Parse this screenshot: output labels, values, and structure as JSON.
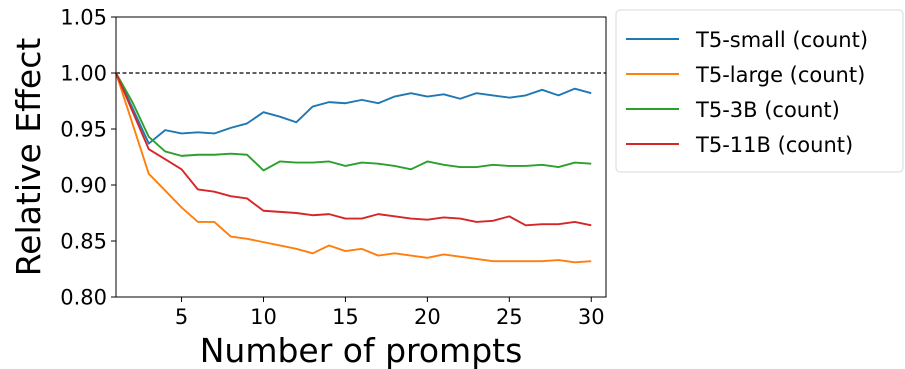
{
  "chart_data": {
    "type": "line",
    "title": "",
    "xlabel": "Number of prompts",
    "ylabel": "Relative Effect",
    "xlim": [
      1,
      30.9
    ],
    "ylim": [
      0.8,
      1.05
    ],
    "xticks": [
      5,
      10,
      15,
      20,
      25,
      30
    ],
    "yticks": [
      0.8,
      0.85,
      0.9,
      0.95,
      1.0,
      1.05
    ],
    "ytick_labels": [
      "0.80",
      "0.85",
      "0.90",
      "0.95",
      "1.00",
      "1.05"
    ],
    "reference_line": {
      "y": 1.0,
      "style": "dashed",
      "color": "#000000"
    },
    "grid": false,
    "legend_position": "outside-top-right",
    "x": [
      1,
      2,
      3,
      4,
      5,
      6,
      7,
      8,
      9,
      10,
      11,
      12,
      13,
      14,
      15,
      16,
      17,
      18,
      19,
      20,
      21,
      22,
      23,
      24,
      25,
      26,
      27,
      28,
      29,
      30
    ],
    "series": [
      {
        "name": "T5-small (count)",
        "color": "#1f77b4",
        "values": [
          1.0,
          0.969,
          0.937,
          0.949,
          0.946,
          0.947,
          0.946,
          0.951,
          0.955,
          0.965,
          0.961,
          0.956,
          0.97,
          0.974,
          0.973,
          0.976,
          0.973,
          0.979,
          0.982,
          0.979,
          0.981,
          0.977,
          0.982,
          0.98,
          0.978,
          0.98,
          0.985,
          0.98,
          0.986,
          0.982
        ]
      },
      {
        "name": "T5-large (count)",
        "color": "#ff7f0e",
        "values": [
          1.0,
          0.955,
          0.91,
          0.895,
          0.88,
          0.867,
          0.867,
          0.854,
          0.852,
          0.849,
          0.846,
          0.843,
          0.839,
          0.846,
          0.841,
          0.843,
          0.837,
          0.839,
          0.837,
          0.835,
          0.838,
          0.836,
          0.834,
          0.832,
          0.832,
          0.832,
          0.832,
          0.833,
          0.831,
          0.832
        ]
      },
      {
        "name": "T5-3B (count)",
        "color": "#2ca02c",
        "values": [
          1.0,
          0.974,
          0.943,
          0.93,
          0.926,
          0.927,
          0.927,
          0.928,
          0.927,
          0.913,
          0.921,
          0.92,
          0.92,
          0.921,
          0.917,
          0.92,
          0.919,
          0.917,
          0.914,
          0.921,
          0.918,
          0.916,
          0.916,
          0.918,
          0.917,
          0.917,
          0.918,
          0.916,
          0.92,
          0.919
        ]
      },
      {
        "name": "T5-11B (count)",
        "color": "#d62728",
        "values": [
          1.0,
          0.966,
          0.932,
          0.923,
          0.914,
          0.896,
          0.894,
          0.89,
          0.888,
          0.877,
          0.876,
          0.875,
          0.873,
          0.874,
          0.87,
          0.87,
          0.874,
          0.872,
          0.87,
          0.869,
          0.871,
          0.87,
          0.867,
          0.868,
          0.872,
          0.864,
          0.865,
          0.865,
          0.867,
          0.864
        ]
      }
    ]
  }
}
